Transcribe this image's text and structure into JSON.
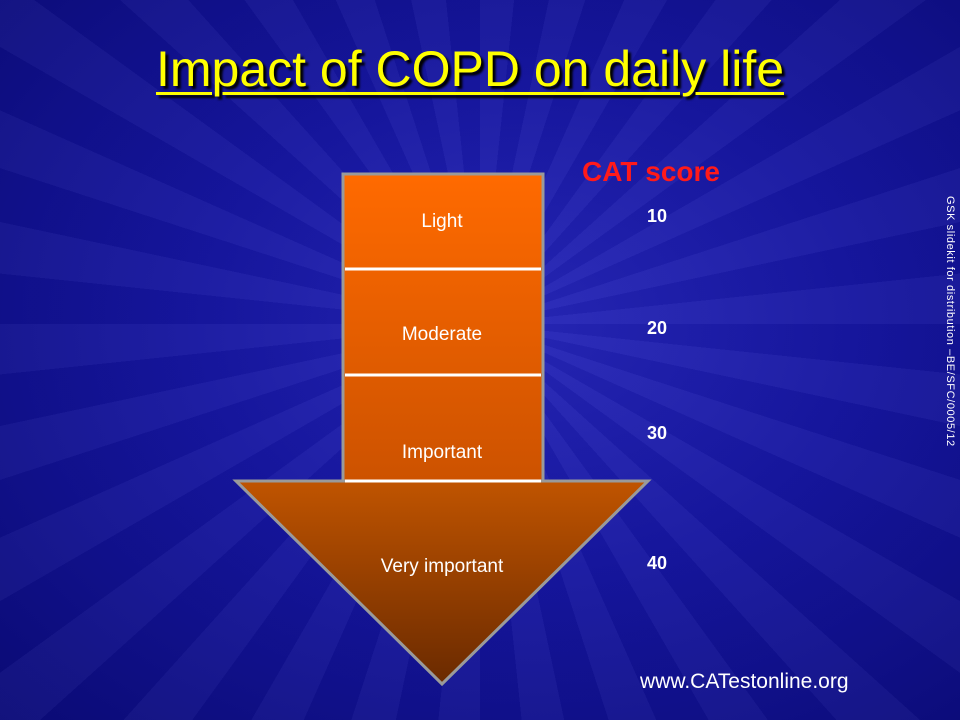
{
  "slide": {
    "title": "Impact of COPD on daily life",
    "side_note": "GSK slidekit for distribution –BE/SFC/0005/12",
    "url": "www.CATestonline.org"
  },
  "diagram": {
    "levels": [
      "Light",
      "Moderate",
      "Important",
      "Very important"
    ]
  },
  "cat": {
    "heading": "CAT score",
    "scores": [
      "10",
      "20",
      "30",
      "40"
    ]
  },
  "colors": {
    "title": "#ffff00",
    "cat_heading": "#ff1a1a",
    "arrow_top": "#ff6a00",
    "arrow_bottom": "#7a3000"
  }
}
